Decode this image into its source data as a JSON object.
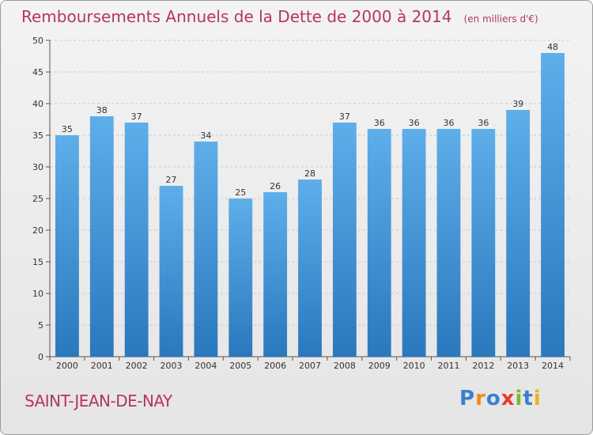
{
  "chart_data": {
    "type": "bar",
    "title": "Remboursements Annuels de la Dette de 2000 à 2014",
    "subtitle": "(en milliers d'€)",
    "xlabel": "",
    "ylabel": "",
    "categories": [
      "2000",
      "2001",
      "2002",
      "2003",
      "2004",
      "2005",
      "2006",
      "2007",
      "2008",
      "2009",
      "2010",
      "2011",
      "2012",
      "2013",
      "2014"
    ],
    "values": [
      35,
      38,
      37,
      27,
      34,
      25,
      26,
      28,
      37,
      36,
      36,
      36,
      36,
      39,
      48
    ],
    "ylim": [
      0,
      50
    ],
    "yticks": [
      0,
      5,
      10,
      15,
      20,
      25,
      30,
      35,
      40,
      45,
      50
    ],
    "grid": true,
    "bar_color": "#3a8fd3"
  },
  "footer": {
    "town": "SAINT-JEAN-DE-NAY",
    "logo": "Proxiti",
    "logo_letters": [
      "P",
      "r",
      "o",
      "x",
      "i",
      "t",
      "i"
    ],
    "logo_colors": [
      "#3a7fd0",
      "#f08a1c",
      "#3a7fd0",
      "#e83a2c",
      "#7cbb2a",
      "#3a7fd0",
      "#f0b21c"
    ]
  }
}
